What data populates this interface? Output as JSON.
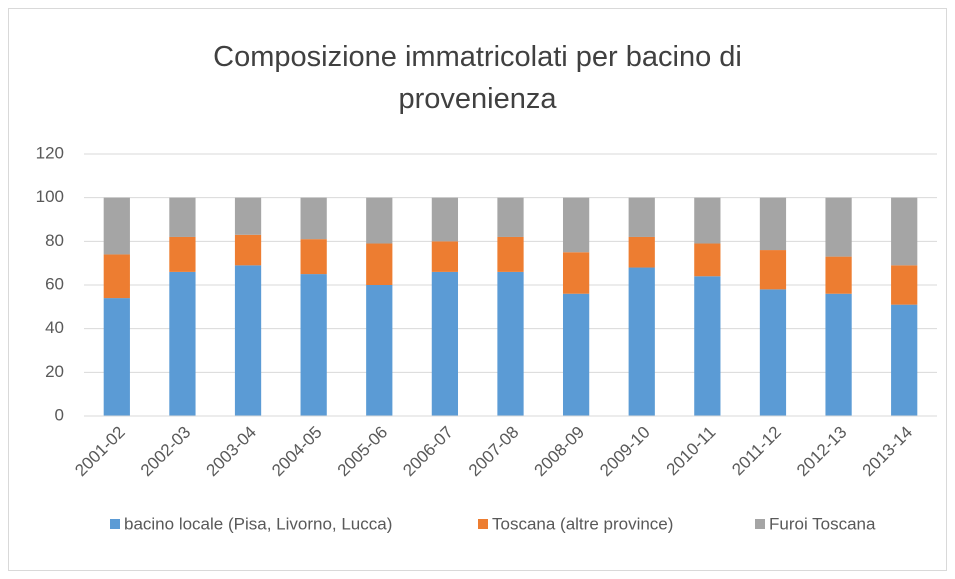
{
  "chart_data": {
    "type": "stacked-bar",
    "title": "Composizione immatricolati per bacino di provenienza",
    "categories": [
      "2001-02",
      "2002-03",
      "2003-04",
      "2004-05",
      "2005-06",
      "2006-07",
      "2007-08",
      "2008-09",
      "2009-10",
      "2010-11",
      "2011-12",
      "2012-13",
      "2013-14"
    ],
    "series": [
      {
        "name": "bacino locale (Pisa, Livorno, Lucca)",
        "color": "#5b9bd5",
        "values": [
          54,
          66,
          69,
          65,
          60,
          66,
          66,
          56,
          68,
          64,
          58,
          56,
          51
        ]
      },
      {
        "name": "Toscana (altre province)",
        "color": "#ed7d31",
        "values": [
          20,
          16,
          14,
          16,
          19,
          14,
          16,
          19,
          14,
          15,
          18,
          17,
          18
        ]
      },
      {
        "name": "Furoi Toscana",
        "color": "#a5a5a5",
        "values": [
          26,
          18,
          17,
          19,
          21,
          20,
          18,
          25,
          18,
          21,
          24,
          27,
          31
        ]
      }
    ],
    "ylim": [
      0,
      120
    ],
    "yticks": [
      0,
      20,
      40,
      60,
      80,
      100,
      120
    ],
    "grid": true,
    "legend": "bottom"
  }
}
